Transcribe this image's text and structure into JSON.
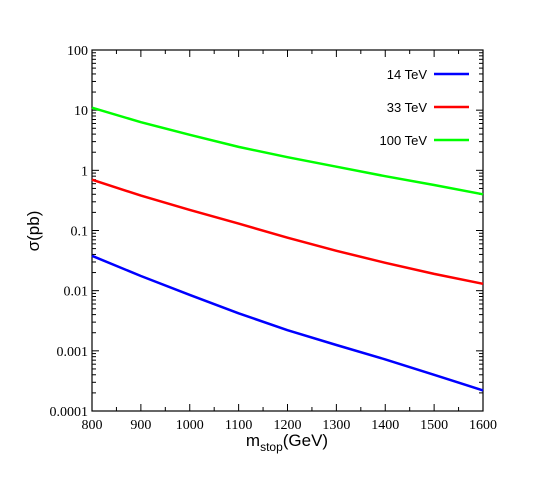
{
  "chart_data": {
    "type": "line",
    "title": "",
    "xlabel": {
      "main": "m",
      "sub": "stop",
      "unit": "(GeV)"
    },
    "ylabel": "σ(pb)",
    "xlim": [
      800,
      1600
    ],
    "ylim": [
      0.0001,
      100
    ],
    "yscale": "log",
    "grid": false,
    "legend_position": "top-right",
    "x_ticks": [
      "800",
      "900",
      "1000",
      "1100",
      "1200",
      "1300",
      "1400",
      "1500",
      "1600"
    ],
    "y_ticks": [
      "100",
      "10",
      "1",
      "0.1",
      "0.01",
      "0.001",
      "0.0001"
    ],
    "x": [
      800,
      900,
      1000,
      1100,
      1200,
      1300,
      1400,
      1500,
      1600
    ],
    "series": [
      {
        "name": "14 TeV",
        "color": "#0000ff",
        "values": [
          0.038,
          0.0175,
          0.0085,
          0.0042,
          0.0022,
          0.00125,
          0.00072,
          0.0004,
          0.00022
        ]
      },
      {
        "name": "33 TeV",
        "color": "#ff0000",
        "values": [
          0.7,
          0.38,
          0.22,
          0.13,
          0.076,
          0.046,
          0.029,
          0.019,
          0.013
        ]
      },
      {
        "name": "100 TeV",
        "color": "#00ff00",
        "values": [
          11,
          6.3,
          3.9,
          2.45,
          1.65,
          1.15,
          0.8,
          0.57,
          0.4
        ]
      }
    ]
  }
}
